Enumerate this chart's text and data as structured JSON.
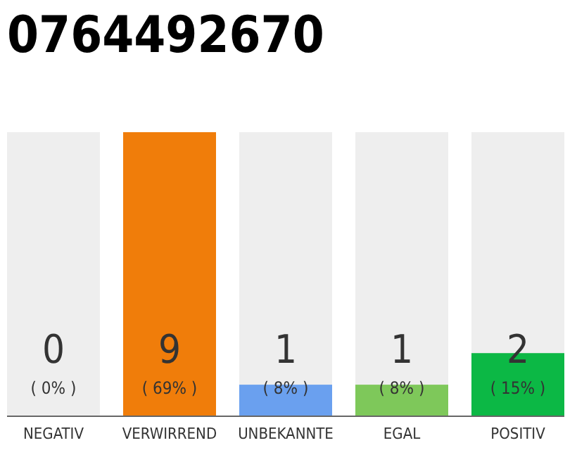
{
  "chart_data": {
    "type": "bar",
    "title": "0764492670",
    "categories": [
      "NEGATIV",
      "VERWIRREND",
      "UNBEKANNTE",
      "EGAL",
      "POSITIV"
    ],
    "values": [
      0,
      9,
      1,
      1,
      2
    ],
    "colors": [
      "#aaaaaa",
      "#f07d0a",
      "#6aa0ef",
      "#7ec85a",
      "#0cb845"
    ],
    "ylim": [
      0,
      9
    ],
    "tick_labels": "x",
    "data_labels": true,
    "annotations": [
      "( 0% )",
      "( 69% )",
      "( 8% )",
      "( 8% )",
      "( 15% )"
    ]
  }
}
